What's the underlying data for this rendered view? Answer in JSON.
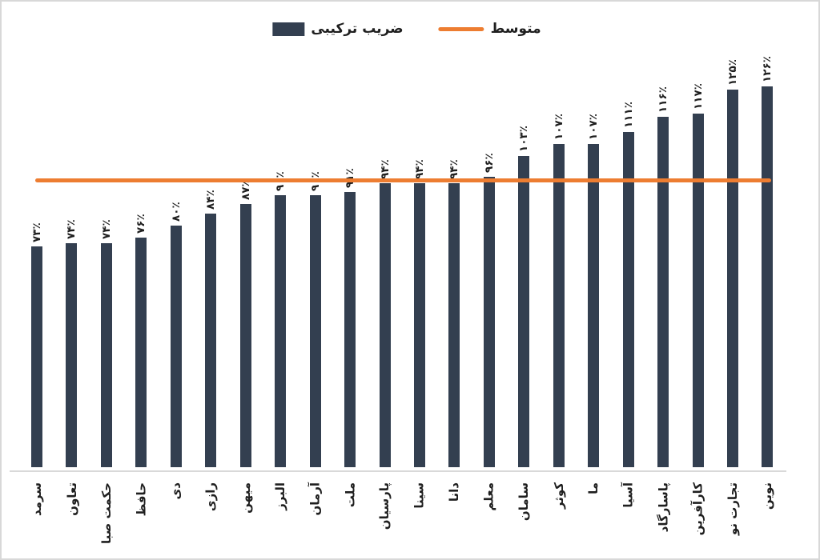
{
  "legend": {
    "series_label": "ضریب ترکیبی",
    "average_label": "متوسط"
  },
  "colors": {
    "bar": "#333F50",
    "average_line": "#ED7D31",
    "axis_line": "#D9D9D9",
    "text": "#1F1F1F"
  },
  "chart_data": {
    "type": "bar",
    "title": "",
    "xlabel": "",
    "ylabel": "",
    "ylim": [
      0,
      126
    ],
    "grid": false,
    "legend_position": "top-center",
    "categories": [
      "سرمد",
      "تعاون",
      "حکمت صبا",
      "حافظ",
      "دی",
      "رازی",
      "میهن",
      "البرز",
      "آرمان",
      "ملت",
      "پارسیان",
      "سینا",
      "دانا",
      "معلم",
      "سامان",
      "کوثر",
      "ما",
      "آسیا",
      "پاسارگاد",
      "کارآفرین",
      "تجارت نو",
      "نوین"
    ],
    "series": [
      {
        "name": "ضریب ترکیبی",
        "values": [
          73,
          74,
          74,
          76,
          80,
          84,
          87,
          90,
          90,
          91,
          94,
          94,
          94,
          96,
          103,
          107,
          107,
          111,
          116,
          117,
          125,
          126
        ],
        "value_labels": [
          "۷۳٪",
          "۷۴٪",
          "۷۴٪",
          "۷۶٪",
          "۸۰٪",
          "۸۴٪",
          "۸۷٪",
          "۹۰٪",
          "۹۰٪",
          "۹۱٪",
          "۹۴٪",
          "۹۴٪",
          "۹۴٪",
          "۹۶٪",
          "۱۰۳٪",
          "۱۰۷٪",
          "۱۰۷٪",
          "۱۱۱٪",
          "۱۱۶٪",
          "۱۱۷٪",
          "۱۲۵٪",
          "۱۲۶٪"
        ]
      }
    ],
    "average": {
      "name": "متوسط",
      "value": 96
    }
  }
}
